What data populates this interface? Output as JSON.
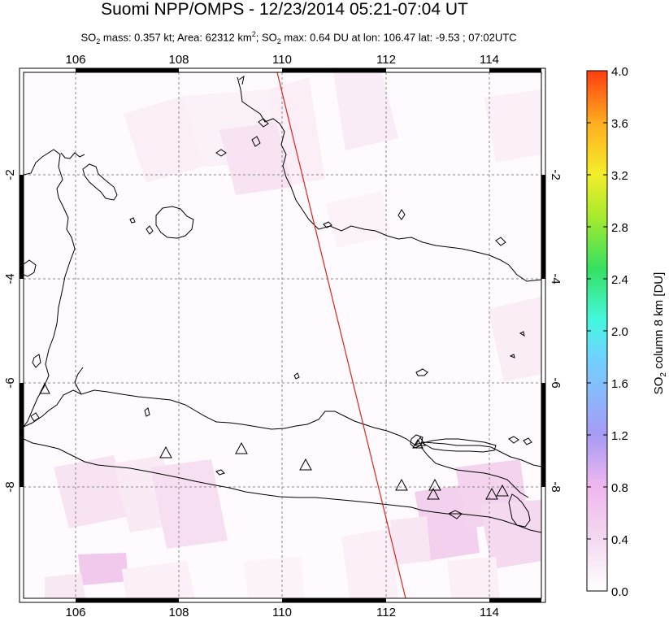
{
  "title": "Suomi NPP/OMPS - 12/23/2014 05:21-07:04 UT",
  "subtitle": {
    "so2_mass_label": "SO",
    "so2_mass_rest": " mass: 0.357 kt; Area: 62312 km",
    "area_sup": "2",
    "so2_max_prefix": "; SO",
    "so2_max_rest": " max: 0.64 DU at lon: 106.47 lat: -9.53 ; 07:02UTC"
  },
  "map": {
    "lon_ticks": [
      "106",
      "108",
      "110",
      "112",
      "114"
    ],
    "lat_ticks": [
      "-2",
      "-4",
      "-6",
      "-8"
    ],
    "colors": {
      "coast": "#000000",
      "grid": "#888888",
      "orbit_line": "#e0241c",
      "so2_low": "#f7e6f3",
      "so2_mid": "#f2c6ec"
    },
    "volcano_icon": "triangle-icon",
    "volcano_count": 11
  },
  "colorbar": {
    "ticks": [
      "4.0",
      "3.6",
      "3.2",
      "2.8",
      "2.4",
      "2.0",
      "1.6",
      "1.2",
      "0.8",
      "0.4",
      "0.0"
    ],
    "label_prefix": "SO",
    "label_sub": "2",
    "label_rest": " column 8 km [DU]",
    "colors": [
      "#ffffff",
      "#f0b8ee",
      "#a79bf5",
      "#6fd3ff",
      "#45f7df",
      "#36e060",
      "#a8ea2e",
      "#f4ee2a",
      "#ffad20",
      "#ff3d10"
    ]
  }
}
